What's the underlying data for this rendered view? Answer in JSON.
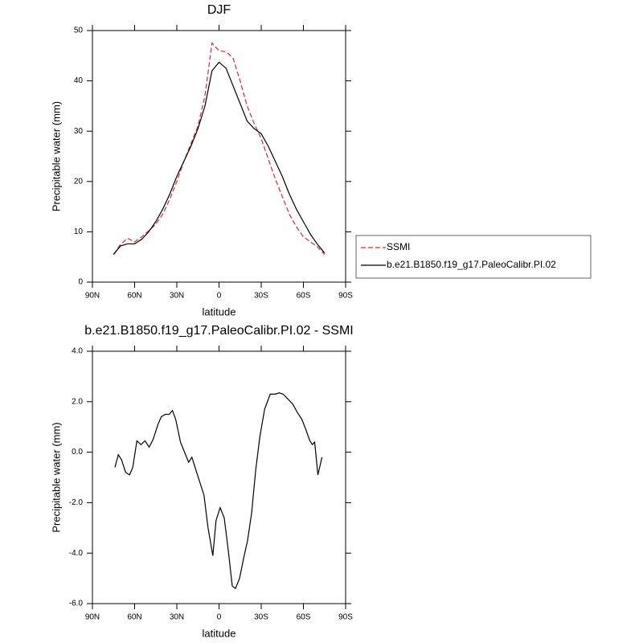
{
  "chart_data": [
    {
      "type": "line",
      "title": "DJF",
      "xlabel": "latitude",
      "ylabel": "Precipitable water (mm)",
      "x": [
        75,
        70,
        65,
        60,
        55,
        50,
        45,
        40,
        35,
        30,
        25,
        20,
        15,
        10,
        5,
        0,
        -5,
        -10,
        -15,
        -20,
        -25,
        -30,
        -35,
        -40,
        -45,
        -50,
        -55,
        -60,
        -65,
        -70,
        -75
      ],
      "series": [
        {
          "name": "SSMI",
          "color": "#e8262b",
          "line_style": "dashed",
          "values": [
            5.5,
            7.5,
            8.7,
            8,
            9,
            10.2,
            11.5,
            13.5,
            16.5,
            20,
            24,
            27.5,
            31,
            37,
            47.5,
            46,
            45.8,
            44.5,
            40,
            35,
            31.5,
            28.5,
            24.5,
            20.5,
            17,
            13.5,
            11,
            9,
            8,
            7,
            5.5
          ]
        },
        {
          "name": "b.e21.B1850.f19_g17.PaleoCalibr.PI.02",
          "color": "#000000",
          "line_style": "solid",
          "values": [
            5.5,
            7.2,
            7.6,
            7.6,
            8.5,
            10,
            12,
            14.5,
            17.5,
            21,
            24,
            27,
            30.5,
            35,
            42,
            43.7,
            42.5,
            39,
            35.5,
            32,
            30.5,
            29.5,
            27,
            24,
            21,
            17.5,
            14.5,
            12,
            9.5,
            7.5,
            5.8
          ]
        }
      ],
      "xlim": [
        90,
        -90
      ],
      "xticks": [
        {
          "value": 90,
          "label": "90N"
        },
        {
          "value": 60,
          "label": "60N"
        },
        {
          "value": 30,
          "label": "30N"
        },
        0,
        {
          "value": -30,
          "label": "30S"
        },
        {
          "value": -60,
          "label": "60S"
        },
        {
          "value": -90,
          "label": "90S"
        }
      ],
      "ylim": [
        0,
        50
      ],
      "yticks": [
        0,
        10,
        20,
        30,
        40,
        50
      ],
      "legend": "right"
    },
    {
      "type": "line",
      "title": "b.e21.B1850.f19_g17.PaleoCalibr.PI.02 - SSMI",
      "xlabel": "latitude",
      "ylabel": "Precipitable water (mm)",
      "x": [
        74,
        71.6,
        69.3,
        66.4,
        63.6,
        61.3,
        58.4,
        55.5,
        52.6,
        49.7,
        46.9,
        43.4,
        41.1,
        38.3,
        35.4,
        33.1,
        30.8,
        27.4,
        24.5,
        21.6,
        19.3,
        15.9,
        13,
        10.7,
        7.8,
        4.4,
        2.1,
        -0.8,
        -3.7,
        -6.6,
        -9.4,
        -11.7,
        -14.6,
        -17.5,
        -20.3,
        -23.2,
        -26.1,
        -29,
        -32.4,
        -36.4,
        -39.9,
        -42.8,
        -45.6,
        -49.1,
        -52.5,
        -55.4,
        -58.9,
        -61.7,
        -64.6,
        -66.3,
        -68,
        -70.3,
        -73.2
      ],
      "series": [
        {
          "name": null,
          "color": "#000000",
          "line_style": "solid",
          "values": [
            -0.6,
            -0.1,
            -0.3,
            -0.8,
            -0.9,
            -0.6,
            0.45,
            0.3,
            0.45,
            0.2,
            0.5,
            1.1,
            1.4,
            1.5,
            1.5,
            1.65,
            1.3,
            0.4,
            0,
            -0.4,
            -0.2,
            -0.8,
            -1.3,
            -1.7,
            -3,
            -4.1,
            -2.7,
            -2.2,
            -2.6,
            -3.9,
            -5.3,
            -5.4,
            -5,
            -4.2,
            -3.5,
            -2.4,
            -0.7,
            0.6,
            1.7,
            2.3,
            2.3,
            2.35,
            2.3,
            2.1,
            1.9,
            1.6,
            1.3,
            0.9,
            0.45,
            0.3,
            0.4,
            -0.9,
            -0.2
          ]
        }
      ],
      "xlim": [
        90,
        -90
      ],
      "xticks": [
        {
          "value": 90,
          "label": "90N"
        },
        {
          "value": 60,
          "label": "60N"
        },
        {
          "value": 30,
          "label": "30N"
        },
        0,
        {
          "value": -30,
          "label": "30S"
        },
        {
          "value": -60,
          "label": "60S"
        },
        {
          "value": -90,
          "label": "90S"
        }
      ],
      "ylim": [
        -6,
        4
      ],
      "yticks": [
        {
          "value": -6,
          "label": "-6.0"
        },
        {
          "value": -4,
          "label": "-4.0"
        },
        {
          "value": -2,
          "label": "-2.0"
        },
        {
          "value": 0,
          "label": "0.0"
        },
        {
          "value": 2,
          "label": "2.0"
        },
        {
          "value": 4,
          "label": "4.0"
        }
      ]
    }
  ]
}
